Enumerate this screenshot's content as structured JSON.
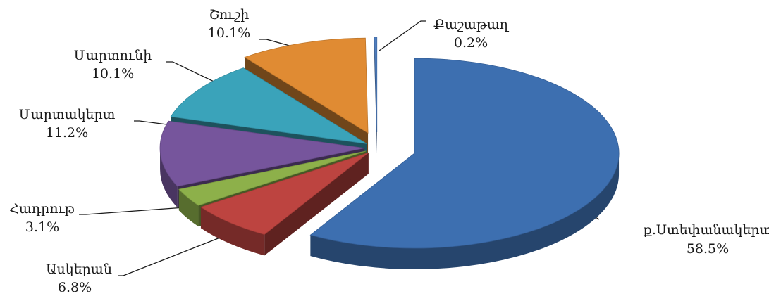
{
  "chart_data": {
    "type": "pie",
    "slices": [
      {
        "name": "ք.Ստեփանակերտ",
        "value": 58.5,
        "label": "58.5%",
        "color": "#3d6fb0"
      },
      {
        "name": "Ասկերան",
        "value": 6.8,
        "label": "6.8%",
        "color": "#bd4440"
      },
      {
        "name": "Հադրութ",
        "value": 3.1,
        "label": "3.1%",
        "color": "#8db04a"
      },
      {
        "name": "Մարտակերտ",
        "value": 11.2,
        "label": "11.2%",
        "color": "#76559c"
      },
      {
        "name": "Մարտունի",
        "value": 10.1,
        "label": "10.1%",
        "color": "#3aa3ba"
      },
      {
        "name": "Շուշի",
        "value": 10.1,
        "label": "10.1%",
        "color": "#e08b33"
      },
      {
        "name": "Քաշաթաղ",
        "value": 0.2,
        "label": "0.2%",
        "color": "#4f7ec0"
      }
    ]
  }
}
